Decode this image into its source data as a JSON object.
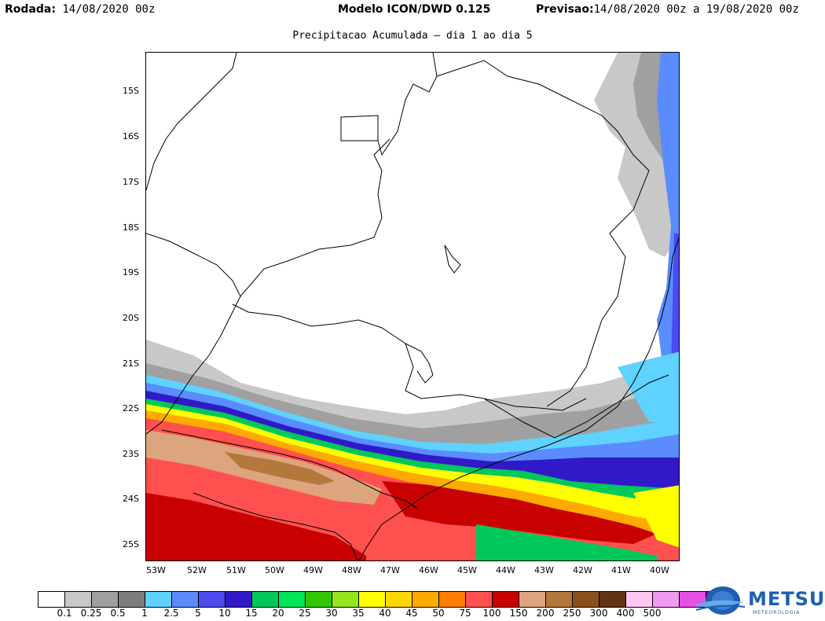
{
  "header": {
    "run_label": "Rodada:",
    "run_value": "14/08/2020 00z",
    "model_label": "Modelo ICON/DWD 0.125",
    "forecast_label": "Previsao:",
    "forecast_value": "14/08/2020 00z a 19/08/2020 00z"
  },
  "subtitle": "Precipitacao Acumulada — dia 1 ao dia 5",
  "map": {
    "lat_ticks": [
      "15S",
      "16S",
      "17S",
      "18S",
      "19S",
      "20S",
      "21S",
      "22S",
      "23S",
      "24S",
      "25S"
    ],
    "lon_ticks": [
      "53W",
      "52W",
      "51W",
      "50W",
      "49W",
      "48W",
      "47W",
      "46W",
      "45W",
      "44W",
      "43W",
      "42W",
      "41W",
      "40W"
    ]
  },
  "legend": {
    "colors": [
      "#ffffff",
      "#c8c8c8",
      "#a0a0a0",
      "#7d7d7d",
      "#5fd2ff",
      "#5a8cff",
      "#4b4bf0",
      "#3219c8",
      "#00c85a",
      "#00e65a",
      "#32c800",
      "#96e61e",
      "#ffff00",
      "#ffd700",
      "#ffaa00",
      "#ff7d00",
      "#ff5050",
      "#c80000",
      "#dca57d",
      "#b4783c",
      "#8c501e",
      "#643214",
      "#ffc8f0",
      "#f09bf0",
      "#e650e6",
      "#a00096"
    ],
    "labels": [
      "0.1",
      "0.25",
      "0.5",
      "1",
      "2.5",
      "5",
      "10",
      "15",
      "20",
      "25",
      "30",
      "35",
      "40",
      "45",
      "50",
      "75",
      "100",
      "150",
      "200",
      "250",
      "300",
      "400",
      "500"
    ]
  },
  "logo": {
    "name": "METSUL",
    "tagline": "METEOROLOGIA",
    "colors": {
      "primary": "#1e5fb4"
    }
  }
}
